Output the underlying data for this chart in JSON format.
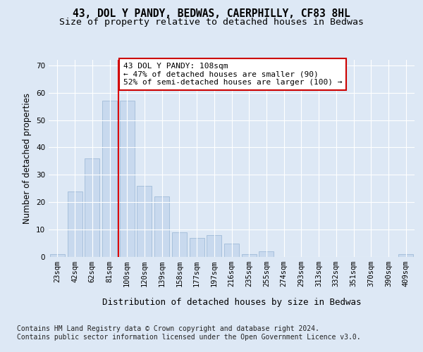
{
  "title1": "43, DOL Y PANDY, BEDWAS, CAERPHILLY, CF83 8HL",
  "title2": "Size of property relative to detached houses in Bedwas",
  "xlabel": "Distribution of detached houses by size in Bedwas",
  "ylabel": "Number of detached properties",
  "categories": [
    "23sqm",
    "42sqm",
    "62sqm",
    "81sqm",
    "100sqm",
    "120sqm",
    "139sqm",
    "158sqm",
    "177sqm",
    "197sqm",
    "216sqm",
    "235sqm",
    "255sqm",
    "274sqm",
    "293sqm",
    "313sqm",
    "332sqm",
    "351sqm",
    "370sqm",
    "390sqm",
    "409sqm"
  ],
  "values": [
    1,
    24,
    36,
    57,
    57,
    26,
    22,
    9,
    7,
    8,
    5,
    1,
    2,
    0,
    0,
    0,
    0,
    0,
    0,
    0,
    1
  ],
  "bar_color": "#c8d9ee",
  "bar_edge_color": "#a0bcd8",
  "highlight_index": 4,
  "highlight_color": "#dd0000",
  "annotation_text": "43 DOL Y PANDY: 108sqm\n← 47% of detached houses are smaller (90)\n52% of semi-detached houses are larger (100) →",
  "annotation_box_facecolor": "#ffffff",
  "annotation_box_edgecolor": "#cc0000",
  "footnote": "Contains HM Land Registry data © Crown copyright and database right 2024.\nContains public sector information licensed under the Open Government Licence v3.0.",
  "ylim": [
    0,
    72
  ],
  "yticks": [
    0,
    10,
    20,
    30,
    40,
    50,
    60,
    70
  ],
  "background_color": "#dde8f5",
  "plot_bg_color": "#dde8f5",
  "grid_color": "#ffffff",
  "title1_fontsize": 10.5,
  "title2_fontsize": 9.5,
  "xlabel_fontsize": 9,
  "ylabel_fontsize": 8.5,
  "tick_fontsize": 7.5,
  "annotation_fontsize": 8,
  "footnote_fontsize": 7
}
